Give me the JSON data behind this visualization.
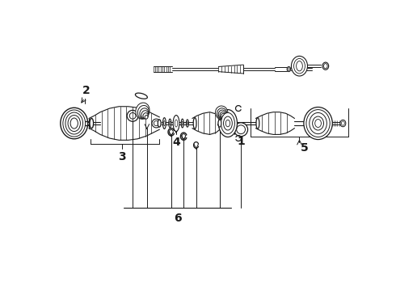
{
  "background_color": "#ffffff",
  "line_color": "#1a1a1a",
  "label_fontsize": 10,
  "figsize": [
    4.9,
    3.6
  ],
  "dpi": 100
}
